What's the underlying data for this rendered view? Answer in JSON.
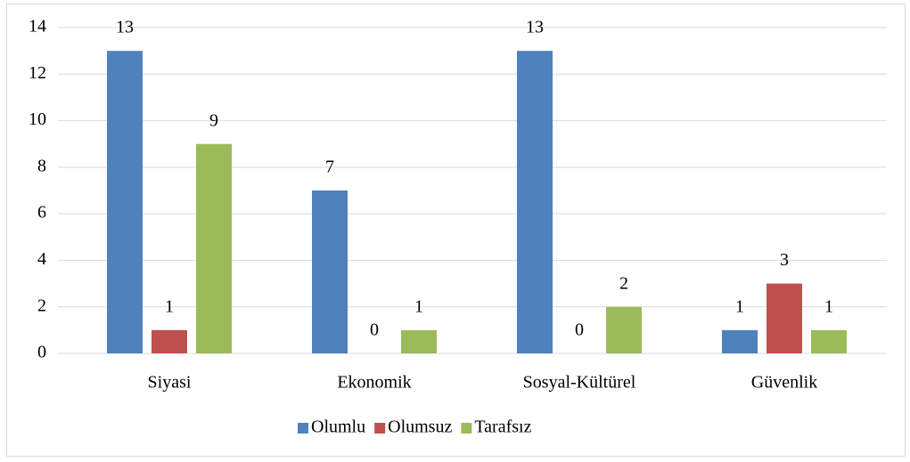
{
  "chart_data": {
    "type": "bar",
    "categories": [
      "Siyasi",
      "Ekonomik",
      "Sosyal-Kültürel",
      "Güvenlik"
    ],
    "series": [
      {
        "name": "Olumlu",
        "color": "#4f81bd",
        "values": [
          13,
          7,
          13,
          1
        ]
      },
      {
        "name": "Olumsuz",
        "color": "#c0504d",
        "values": [
          1,
          0,
          0,
          3
        ]
      },
      {
        "name": "Tarafsız",
        "color": "#9bbb59",
        "values": [
          9,
          1,
          2,
          1
        ]
      }
    ],
    "ylim": [
      0,
      14
    ],
    "yticks": [
      0,
      2,
      4,
      6,
      8,
      10,
      12,
      14
    ],
    "grid": true,
    "legend": "bottom"
  }
}
